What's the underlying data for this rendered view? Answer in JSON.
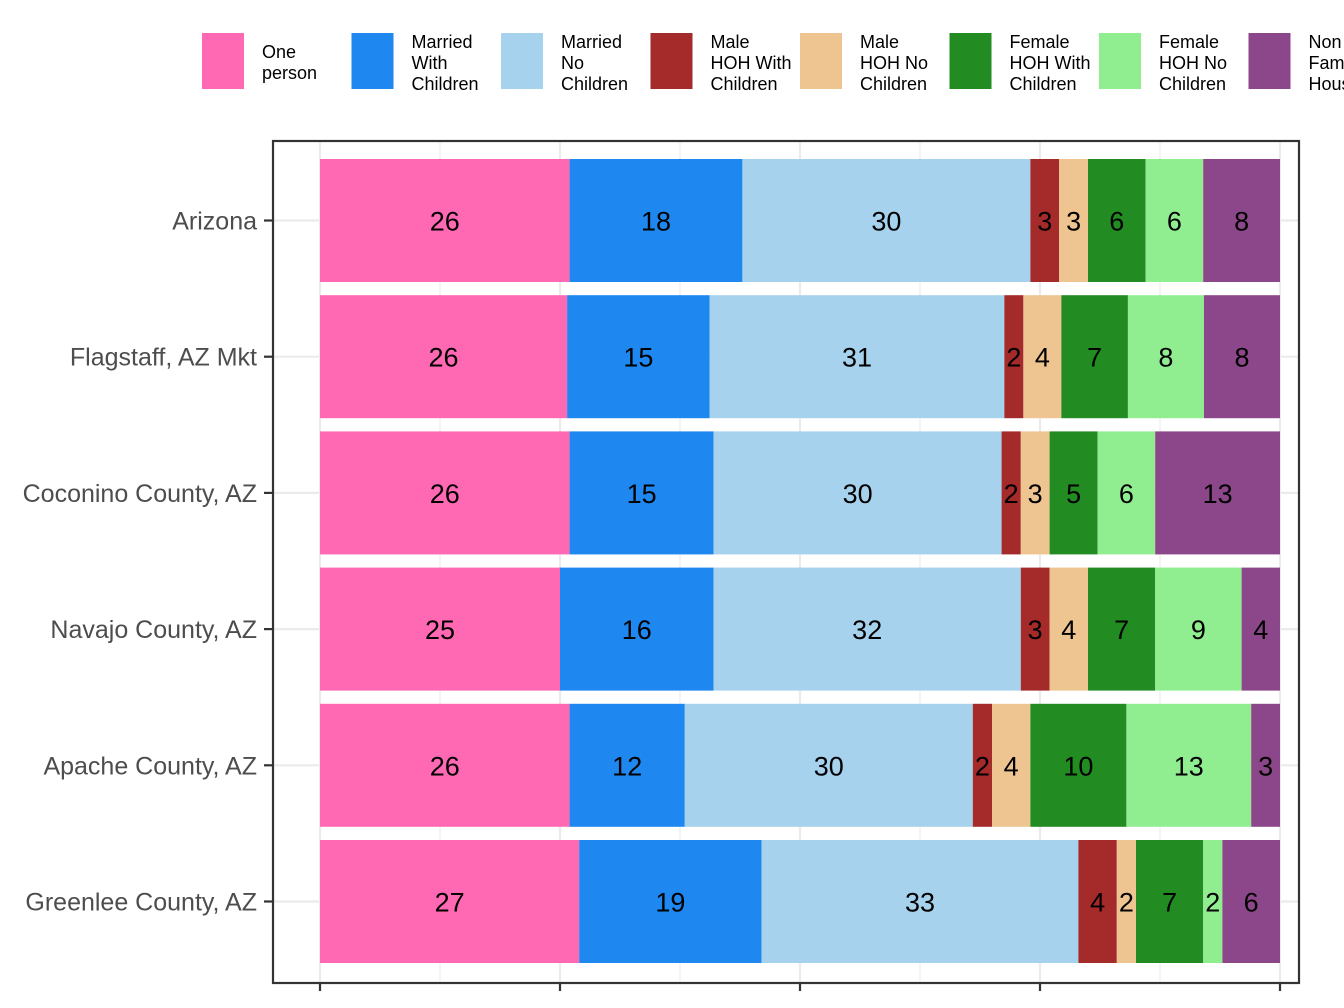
{
  "chart_data": {
    "type": "bar",
    "orientation": "horizontal",
    "stacked": true,
    "categories": [
      "Arizona",
      "Flagstaff, AZ Mkt",
      "Coconino County, AZ",
      "Navajo County, AZ",
      "Apache County, AZ",
      "Greenlee County, AZ"
    ],
    "series": [
      {
        "name": "One person",
        "legend_lines": [
          "One",
          "person"
        ],
        "color": "#FF69B4",
        "values": [
          26,
          26,
          26,
          25,
          26,
          27
        ]
      },
      {
        "name": "Married With Children",
        "legend_lines": [
          "Married",
          "With",
          "Children"
        ],
        "color": "#1E87F0",
        "values": [
          18,
          15,
          15,
          16,
          12,
          19
        ]
      },
      {
        "name": "Married No Children",
        "legend_lines": [
          "Married",
          "No",
          "Children"
        ],
        "color": "#A6D2EE",
        "values": [
          30,
          31,
          30,
          32,
          30,
          33
        ]
      },
      {
        "name": "Male HOH With Children",
        "legend_lines": [
          "Male",
          "HOH With",
          "Children"
        ],
        "color": "#A52A2A",
        "values": [
          3,
          2,
          2,
          3,
          2,
          4
        ]
      },
      {
        "name": "Male HOH No Children",
        "legend_lines": [
          "Male",
          "HOH No",
          "Children"
        ],
        "color": "#EEC591",
        "values": [
          3,
          4,
          3,
          4,
          4,
          2
        ]
      },
      {
        "name": "Female HOH With Children",
        "legend_lines": [
          "Female",
          "HOH With",
          "Children"
        ],
        "color": "#228B22",
        "values": [
          6,
          7,
          5,
          7,
          10,
          7
        ]
      },
      {
        "name": "Female HOH No Children",
        "legend_lines": [
          "Female",
          "HOH No",
          "Children"
        ],
        "color": "#90EE90",
        "values": [
          6,
          8,
          6,
          9,
          13,
          2
        ]
      },
      {
        "name": "Non Family Households",
        "legend_lines": [
          "Non",
          "Family",
          "Households"
        ],
        "color": "#8B4789",
        "values": [
          8,
          8,
          13,
          4,
          3,
          6
        ]
      }
    ],
    "xlim": [
      0,
      100
    ],
    "grid": true,
    "legend_position": "top"
  }
}
